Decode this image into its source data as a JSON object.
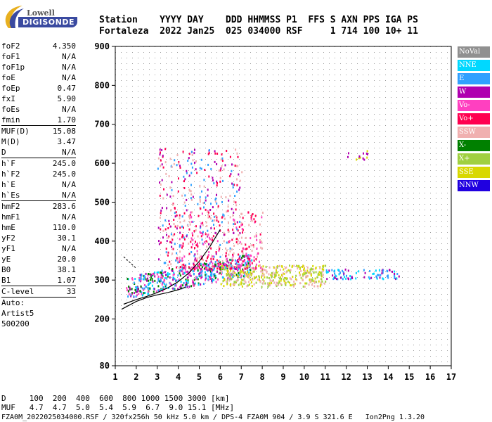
{
  "logo": {
    "line1": "Lowell",
    "line2": "DIGISONDE"
  },
  "header": {
    "line1": "Station    YYYY DAY    DDD HHMMSS P1  FFS S AXN PPS IGA PS",
    "line2": "Fortaleza  2022 Jan25  025 034000 RSF     1 714 100 10+ 11"
  },
  "params": [
    {
      "k": "foF2",
      "v": "4.350"
    },
    {
      "k": "foF1",
      "v": "N/A"
    },
    {
      "k": "foF1p",
      "v": "N/A"
    },
    {
      "k": "foE",
      "v": "N/A"
    },
    {
      "k": "foEp",
      "v": "0.47"
    },
    {
      "k": "fxI",
      "v": "5.90"
    },
    {
      "k": "foEs",
      "v": "N/A"
    },
    {
      "k": "fmin",
      "v": "1.70",
      "sep": true
    },
    {
      "k": "MUF(D)",
      "v": "15.08"
    },
    {
      "k": "M(D)",
      "v": "3.47"
    },
    {
      "k": "D",
      "v": "N/A",
      "sep": true
    },
    {
      "k": "h`F",
      "v": "245.0"
    },
    {
      "k": "h`F2",
      "v": "245.0"
    },
    {
      "k": "h`E",
      "v": "N/A"
    },
    {
      "k": "h`Es",
      "v": "N/A",
      "sep": true
    },
    {
      "k": "hmF2",
      "v": "283.6"
    },
    {
      "k": "hmF1",
      "v": "N/A"
    },
    {
      "k": "hmE",
      "v": "110.0"
    },
    {
      "k": "yF2",
      "v": "30.1"
    },
    {
      "k": "yF1",
      "v": "N/A"
    },
    {
      "k": "yE",
      "v": "20.0"
    },
    {
      "k": "B0",
      "v": "38.1"
    },
    {
      "k": "B1",
      "v": "1.07",
      "sep": true
    },
    {
      "k": "C-level",
      "v": "33",
      "sep": true
    },
    {
      "k": "Auto:",
      "v": ""
    },
    {
      "k": "Artist5",
      "v": ""
    },
    {
      "k": "500200",
      "v": ""
    }
  ],
  "legend": [
    {
      "label": "NoVal",
      "color": "#909090"
    },
    {
      "label": "NNE",
      "color": "#00d8ff"
    },
    {
      "label": "E",
      "color": "#30a0ff"
    },
    {
      "label": "W",
      "color": "#b000b0"
    },
    {
      "label": "Vo-",
      "color": "#ff40c0"
    },
    {
      "label": "Vo+",
      "color": "#ff0050"
    },
    {
      "label": "SSW",
      "color": "#f0b0b0"
    },
    {
      "label": "X-",
      "color": "#008000"
    },
    {
      "label": "X+",
      "color": "#a0d040"
    },
    {
      "label": "SSE",
      "color": "#d8d800"
    },
    {
      "label": "NNW",
      "color": "#2000e0"
    }
  ],
  "footer": {
    "line1": "D     100  200  400  600  800 1000 1500 3000 [km]",
    "line2": "MUF   4.7  4.7  5.0  5.4  5.9  6.7  9.0 15.1 [MHz]",
    "line3": "FZA0M_2022025034000.RSF / 320fx256h 50 kHz 5.0 km / DPS-4 FZA0M 904 / 3.9 S 321.6 E   Ion2Png 1.3.20"
  },
  "chart_data": {
    "type": "scatter",
    "xlabel": "",
    "ylabel": "",
    "xlim": [
      1,
      17
    ],
    "ylim": [
      80,
      900
    ],
    "xticks": [
      1,
      2,
      3,
      4,
      5,
      6,
      7,
      8,
      9,
      10,
      11,
      12,
      13,
      14,
      15,
      16,
      17
    ],
    "yticks": [
      80,
      200,
      300,
      400,
      500,
      600,
      700,
      800,
      900
    ],
    "grid": true,
    "echo_clusters": [
      {
        "name": "F-trace main",
        "x": [
          1.5,
          7.5
        ],
        "y": [
          250,
          330
        ],
        "colors": [
          "#ff40c0",
          "#b000b0",
          "#30a0ff",
          "#00d8ff",
          "#008000"
        ]
      },
      {
        "name": "F-trace extension",
        "x": [
          6,
          11
        ],
        "y": [
          280,
          340
        ],
        "colors": [
          "#d8d800",
          "#a0d040",
          "#f0b0b0"
        ]
      },
      {
        "name": "spread F",
        "x": [
          3,
          7
        ],
        "y": [
          330,
          640
        ],
        "colors": [
          "#f0b0b0",
          "#ff0050",
          "#b000b0",
          "#30a0ff"
        ]
      },
      {
        "name": "spread F upper",
        "x": [
          4,
          8
        ],
        "y": [
          330,
          480
        ],
        "colors": [
          "#f0b0b0",
          "#ff0050",
          "#ff40c0"
        ]
      },
      {
        "name": "oblique echoes",
        "x": [
          11,
          14.5
        ],
        "y": [
          305,
          330
        ],
        "colors": [
          "#30a0ff",
          "#b000b0",
          "#00d8ff"
        ]
      },
      {
        "name": "isolated echoes",
        "x": [
          12,
          13
        ],
        "y": [
          610,
          640
        ],
        "colors": [
          "#b000b0",
          "#d8d800"
        ]
      }
    ],
    "curves": [
      {
        "name": "O-trace",
        "x": [
          1.3,
          2,
          2.5,
          3,
          3.5,
          4,
          4.35
        ],
        "y": [
          225,
          245,
          255,
          262,
          268,
          275,
          282
        ]
      },
      {
        "name": "model profile",
        "x": [
          1.4,
          2,
          2.5,
          3,
          3.5,
          4,
          4.5,
          5,
          5.5,
          6
        ],
        "y": [
          238,
          250,
          258,
          268,
          280,
          296,
          318,
          348,
          385,
          430
        ]
      }
    ]
  }
}
